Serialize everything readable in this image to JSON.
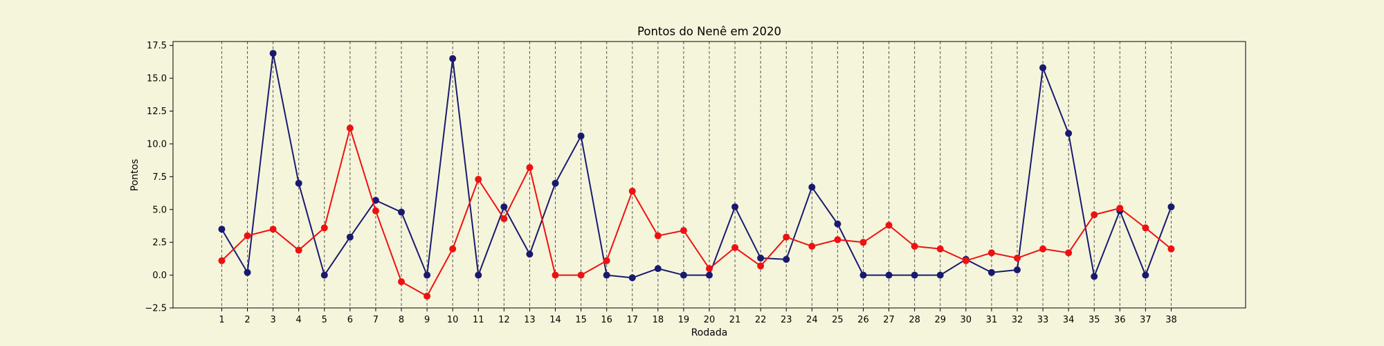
{
  "chart_data": {
    "type": "line",
    "title": "Pontos do Nenê em 2020",
    "xlabel": "Rodada",
    "ylabel": "Pontos",
    "x": [
      1,
      2,
      3,
      4,
      5,
      6,
      7,
      8,
      9,
      10,
      11,
      12,
      13,
      14,
      15,
      16,
      17,
      18,
      19,
      20,
      21,
      22,
      23,
      24,
      25,
      26,
      27,
      28,
      29,
      30,
      31,
      32,
      33,
      34,
      35,
      36,
      37,
      38
    ],
    "xlim": [
      -0.9,
      40.9
    ],
    "ylim": [
      -2.5,
      17.8
    ],
    "yticks": [
      -2.5,
      0.0,
      2.5,
      5.0,
      7.5,
      10.0,
      12.5,
      15.0,
      17.5
    ],
    "ytick_labels": [
      "−2.5",
      "0.0",
      "2.5",
      "5.0",
      "7.5",
      "10.0",
      "12.5",
      "15.0",
      "17.5"
    ],
    "grid": "vertical dashed at each round",
    "series": [
      {
        "color": "#191970",
        "marker": "circle",
        "values": [
          3.5,
          0.2,
          16.9,
          7.0,
          0.0,
          2.9,
          5.7,
          4.8,
          0.0,
          16.5,
          0.0,
          5.2,
          1.6,
          7.0,
          10.6,
          0.0,
          -0.2,
          0.5,
          0.0,
          0.0,
          5.2,
          1.3,
          1.2,
          6.7,
          3.9,
          0.0,
          0.0,
          0.0,
          0.0,
          1.2,
          0.2,
          0.4,
          15.8,
          10.8,
          -0.1,
          4.9,
          0.0,
          5.2
        ]
      },
      {
        "color": "#ee1111",
        "marker": "circle",
        "values": [
          1.1,
          3.0,
          3.5,
          1.9,
          3.6,
          11.2,
          4.9,
          -0.5,
          -1.6,
          2.0,
          7.3,
          4.3,
          8.2,
          0.0,
          0.0,
          1.1,
          6.4,
          3.0,
          3.4,
          0.5,
          2.1,
          0.7,
          2.9,
          2.2,
          2.7,
          2.5,
          3.8,
          2.2,
          2.0,
          1.1,
          1.7,
          1.3,
          2.0,
          1.7,
          4.6,
          5.1,
          3.6,
          2.0
        ]
      }
    ]
  }
}
